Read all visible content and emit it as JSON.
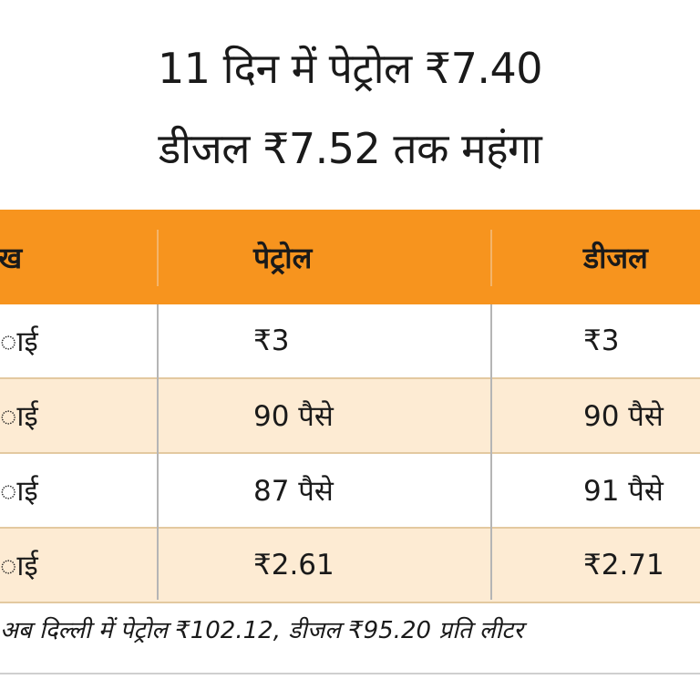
{
  "title": {
    "line1": "11 दिन में पेट्रोल ₹7.40",
    "line2": "डीजल ₹7.52 तक महंगा"
  },
  "table": {
    "headers": [
      "ख",
      "पेट्रोल",
      "डीजल"
    ],
    "rows": [
      {
        "label": "ाई",
        "petrol": "₹3",
        "diesel": "₹3"
      },
      {
        "label": "ाई",
        "petrol": "90 पैसे",
        "diesel": "90 पैसे"
      },
      {
        "label": "ाई",
        "petrol": "87 पैसे",
        "diesel": "91 पैसे"
      },
      {
        "label": "ाई",
        "petrol": "₹2.61",
        "diesel": "₹2.71"
      }
    ]
  },
  "note": "अब दिल्ली में पेट्रोल ₹102.12, डीजल ₹95.20 प्रति लीटर"
}
